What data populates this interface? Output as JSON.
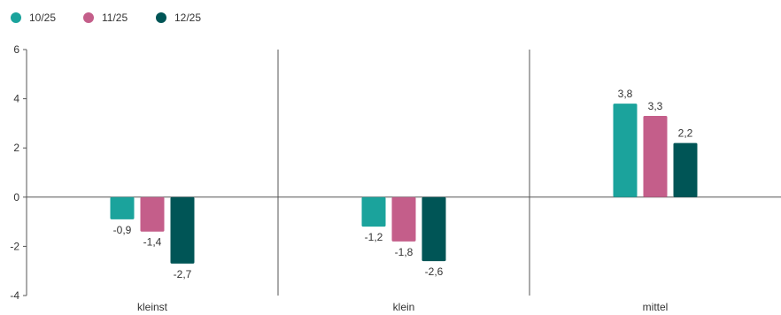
{
  "chart_data": {
    "type": "bar",
    "categories": [
      "kleinst",
      "klein",
      "mittel"
    ],
    "series": [
      {
        "name": "10/25",
        "color": "#1BA39C",
        "values": [
          -0.9,
          -1.2,
          3.8
        ],
        "labels": [
          "-0,9",
          "-1,2",
          "3,8"
        ]
      },
      {
        "name": "11/25",
        "color": "#C45E8A",
        "values": [
          -1.4,
          -1.8,
          3.3
        ],
        "labels": [
          "-1,4",
          "-1,8",
          "3,3"
        ]
      },
      {
        "name": "12/25",
        "color": "#005556",
        "values": [
          -2.7,
          -2.6,
          2.2
        ],
        "labels": [
          "-2,7",
          "-2,6",
          "2,2"
        ]
      }
    ],
    "ylim": [
      -4,
      6
    ],
    "yticks": [
      6,
      4,
      2,
      0,
      -2,
      -4
    ],
    "ytick_labels": [
      "6",
      "4",
      "2",
      "0",
      "-2",
      "-4"
    ],
    "title": "",
    "xlabel": "",
    "ylabel": "",
    "legend_position": "top-left",
    "grid": false,
    "category_dividers": true
  }
}
